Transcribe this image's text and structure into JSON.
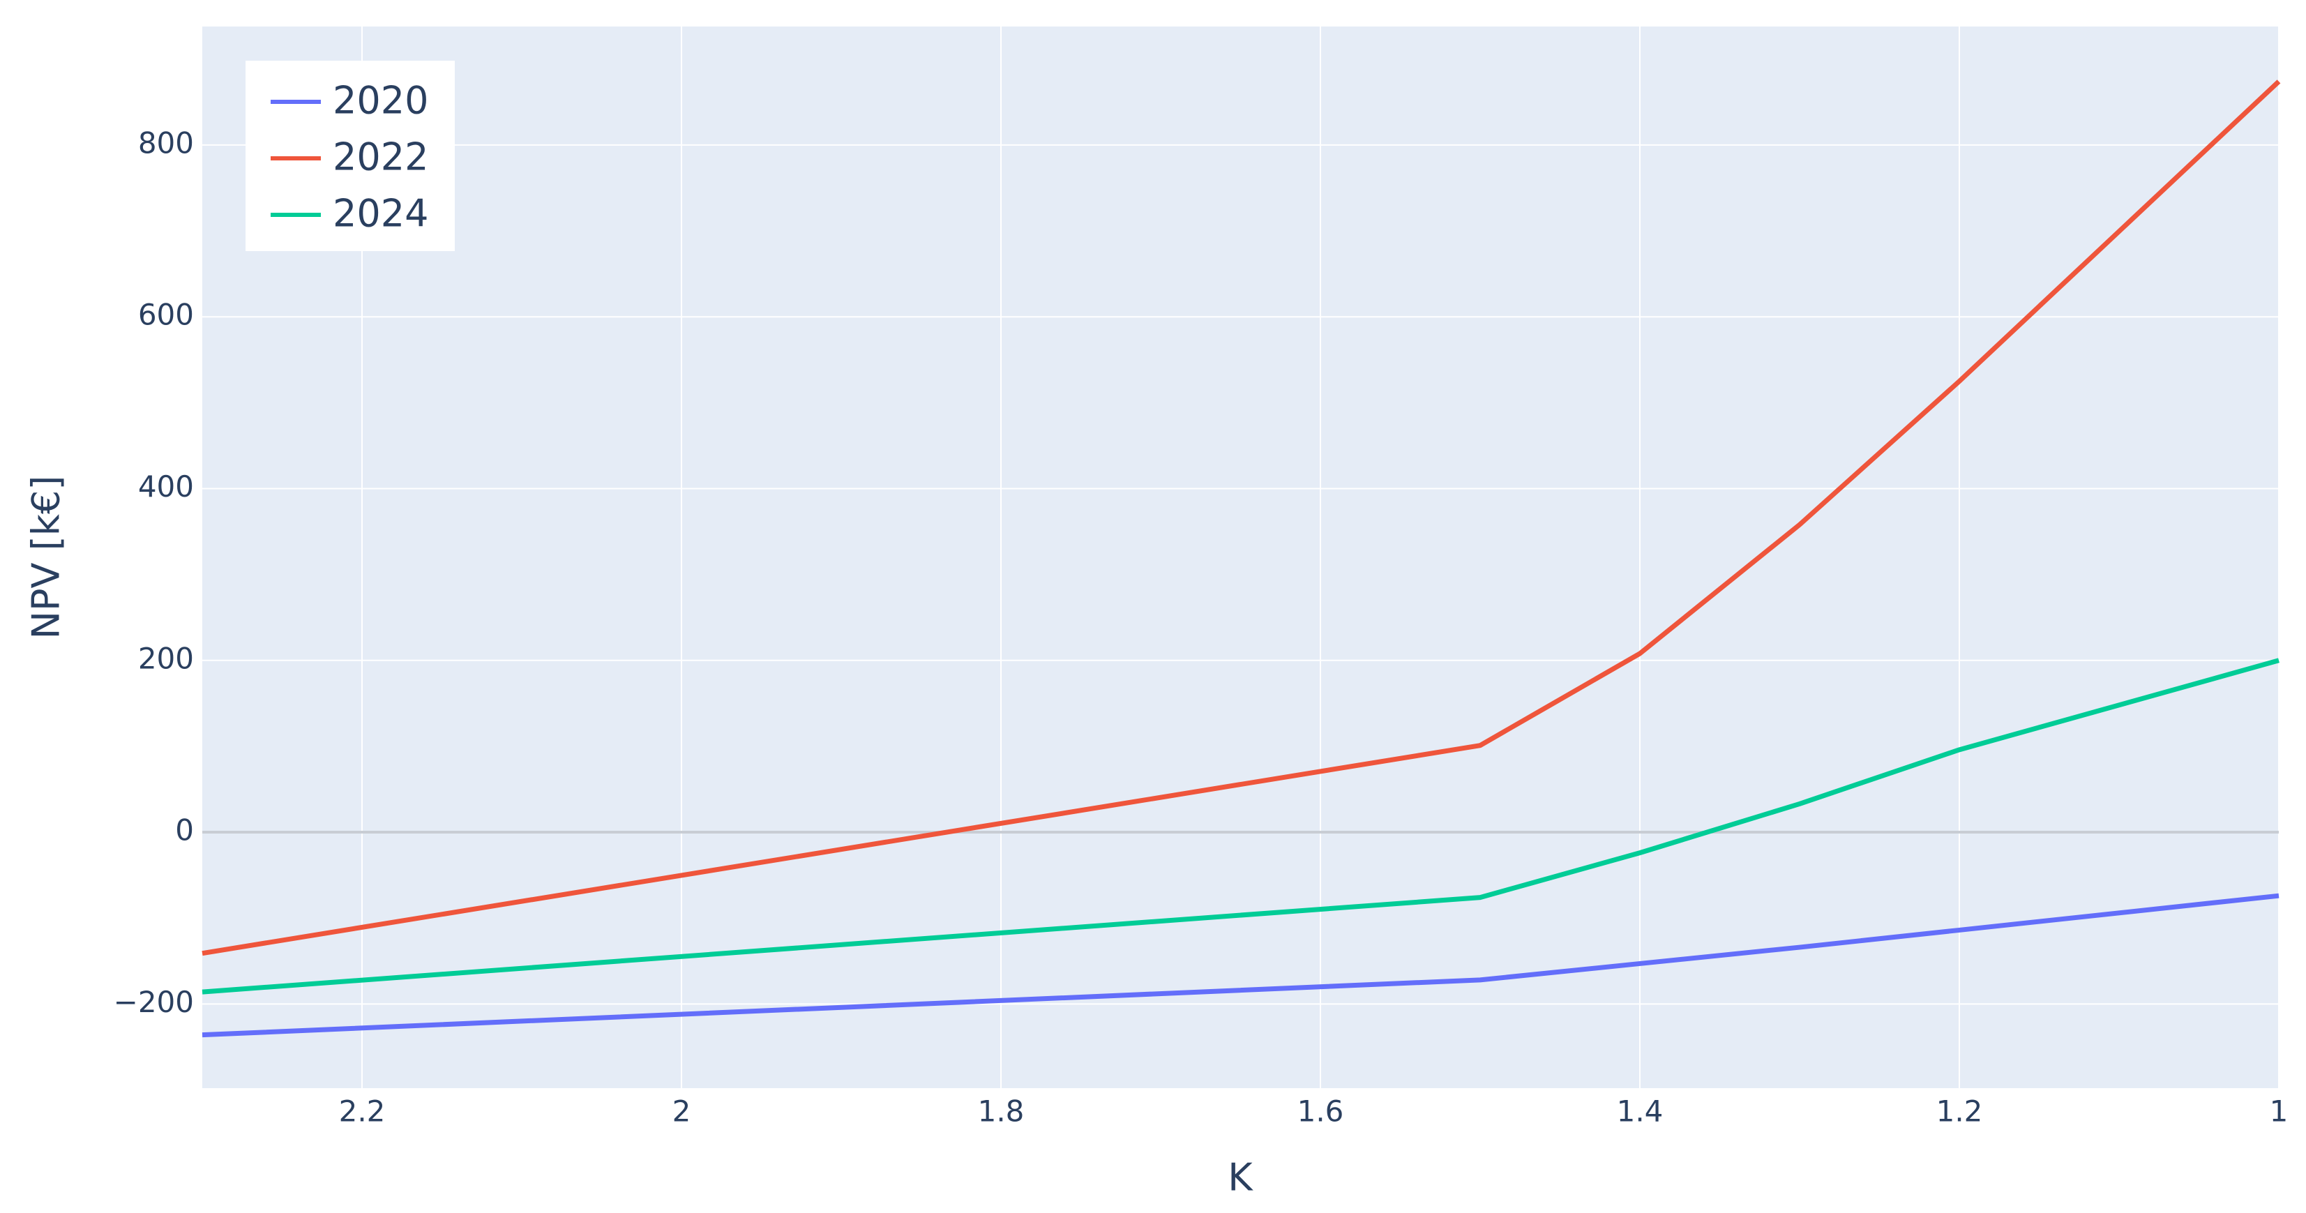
{
  "chart_data": {
    "type": "line",
    "x_label": "K",
    "y_label": "NPV [k€]",
    "x": [
      2.3,
      1.5,
      1.4,
      1.3,
      1.2,
      1
    ],
    "series": [
      {
        "name": "2020",
        "color": "#636efa",
        "values": [
          -236,
          -172,
          -153,
          -134,
          -114,
          -74
        ]
      },
      {
        "name": "2022",
        "color": "#ef553b",
        "values": [
          -141,
          101,
          208,
          358,
          525,
          874
        ]
      },
      {
        "name": "2024",
        "color": "#00cc96",
        "values": [
          -186,
          -76,
          -24,
          33,
          96,
          200
        ]
      }
    ],
    "xlim": [
      2.3,
      1
    ],
    "xticks": [
      2.2,
      2,
      1.8,
      1.6,
      1.4,
      1.2,
      1
    ],
    "ylim": [
      -298,
      938
    ],
    "yticks": [
      {
        "value": -200,
        "label": "−200"
      },
      0,
      200,
      400,
      600,
      800
    ],
    "grid": true,
    "legend": "top-left",
    "background": "#e5ecf6"
  }
}
